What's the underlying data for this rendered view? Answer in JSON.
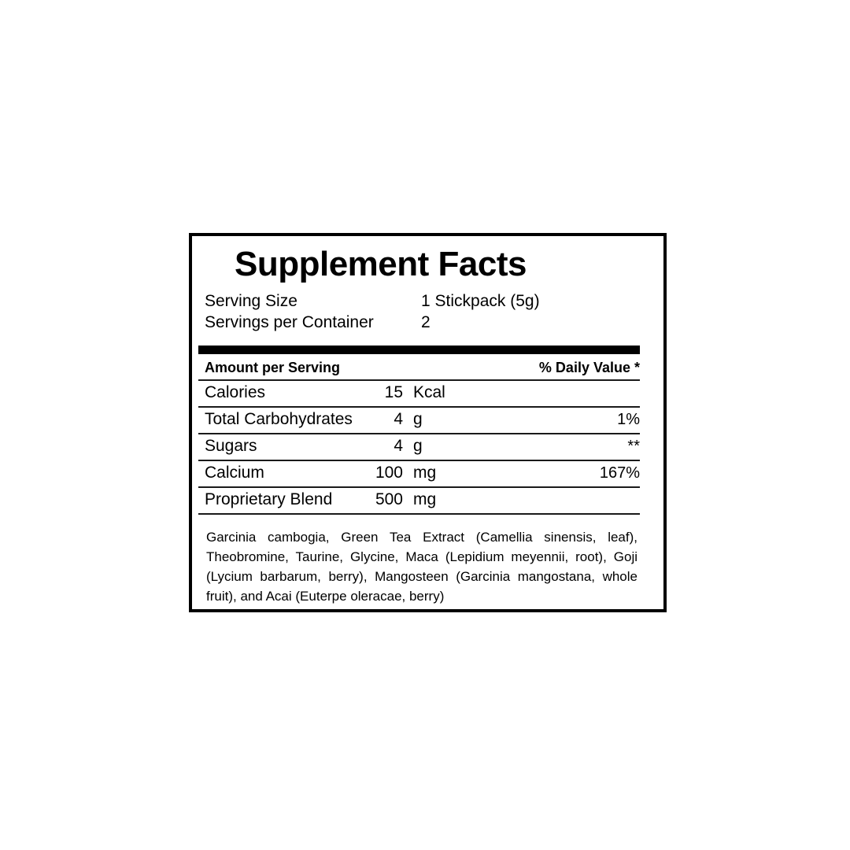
{
  "label": {
    "title": "Supplement Facts",
    "serving_info": [
      {
        "name": "Serving Size",
        "value": "1 Stickpack (5g)"
      },
      {
        "name": "Servings per Container",
        "value": "2"
      }
    ],
    "table": {
      "header_left": "Amount per Serving",
      "header_right": "% Daily Value *",
      "rows": [
        {
          "name": "Calories",
          "amount": "15",
          "unit": "Kcal",
          "dv": ""
        },
        {
          "name": "Total Carbohydrates",
          "amount": "4",
          "unit": "g",
          "dv": "1%"
        },
        {
          "name": "Sugars",
          "amount": "4",
          "unit": "g",
          "dv": "**"
        },
        {
          "name": "Calcium",
          "amount": "100",
          "unit": "mg",
          "dv": "167%"
        },
        {
          "name": "Proprietary Blend",
          "amount": "500",
          "unit": "mg",
          "dv": ""
        }
      ]
    },
    "blend_description": "Garcinia cambogia, Green Tea Extract (Camellia sinensis, leaf), Theobromine, Taurine, Glycine, Maca (Lepidium meyennii, root), Goji (Lycium barbarum, berry), Mangosteen (Garcinia mangostana, whole fruit), and Acai (Euterpe oleracae, berry)"
  },
  "colors": {
    "background": "#ffffff",
    "text": "#000000",
    "border": "#000000"
  }
}
